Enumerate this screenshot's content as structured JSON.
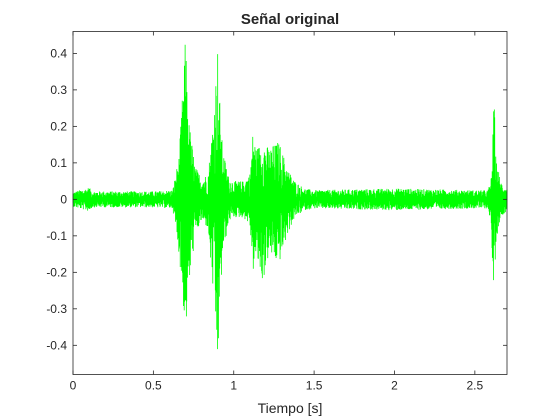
{
  "chart_data": {
    "type": "line",
    "title": "Señal original",
    "xlabel": "Tiempo [s]",
    "ylabel": "",
    "xlim": [
      0,
      2.7
    ],
    "ylim": [
      -0.48,
      0.46
    ],
    "grid": false,
    "legend": "none",
    "x_ticks": [
      0,
      0.5,
      1,
      1.5,
      2,
      2.5
    ],
    "x_tick_labels": [
      "0",
      "0.5",
      "1",
      "1.5",
      "2",
      "2.5"
    ],
    "y_ticks": [
      0.4,
      0.3,
      0.2,
      0.1,
      0,
      -0.1,
      -0.2,
      -0.3,
      -0.4
    ],
    "y_tick_labels": [
      "0.4",
      "0.3",
      "0.2",
      "0.1",
      "0",
      "-0.1",
      "-0.2",
      "-0.3",
      "-0.4"
    ],
    "series": [
      {
        "color": "#00ff00",
        "envelope": {
          "t": [
            0,
            0.08,
            0.1,
            0.12,
            0.5,
            0.62,
            0.66,
            0.68,
            0.7,
            0.72,
            0.76,
            0.8,
            0.84,
            0.86,
            0.88,
            0.9,
            0.91,
            0.93,
            0.97,
            1.0,
            1.06,
            1.1,
            1.12,
            1.14,
            1.18,
            1.22,
            1.28,
            1.34,
            1.38,
            1.44,
            1.5,
            2.0,
            2.5,
            2.58,
            2.6,
            2.61,
            2.62,
            2.63,
            2.66,
            2.7
          ],
          "upper": [
            0.02,
            0.03,
            0.033,
            0.022,
            0.022,
            0.025,
            0.12,
            0.28,
            0.45,
            0.22,
            0.09,
            0.06,
            0.07,
            0.16,
            0.28,
            0.42,
            0.3,
            0.14,
            0.06,
            0.05,
            0.05,
            0.07,
            0.19,
            0.14,
            0.16,
            0.14,
            0.16,
            0.08,
            0.05,
            0.03,
            0.025,
            0.03,
            0.025,
            0.025,
            0.05,
            0.15,
            0.29,
            0.12,
            0.05,
            0.03
          ],
          "lower": [
            -0.02,
            -0.03,
            -0.033,
            -0.022,
            -0.022,
            -0.025,
            -0.15,
            -0.26,
            -0.37,
            -0.25,
            -0.1,
            -0.06,
            -0.08,
            -0.2,
            -0.3,
            -0.48,
            -0.35,
            -0.16,
            -0.06,
            -0.05,
            -0.05,
            -0.07,
            -0.2,
            -0.16,
            -0.23,
            -0.15,
            -0.18,
            -0.09,
            -0.05,
            -0.03,
            -0.025,
            -0.03,
            -0.025,
            -0.025,
            -0.06,
            -0.2,
            -0.3,
            -0.12,
            -0.05,
            -0.03
          ]
        }
      }
    ]
  }
}
